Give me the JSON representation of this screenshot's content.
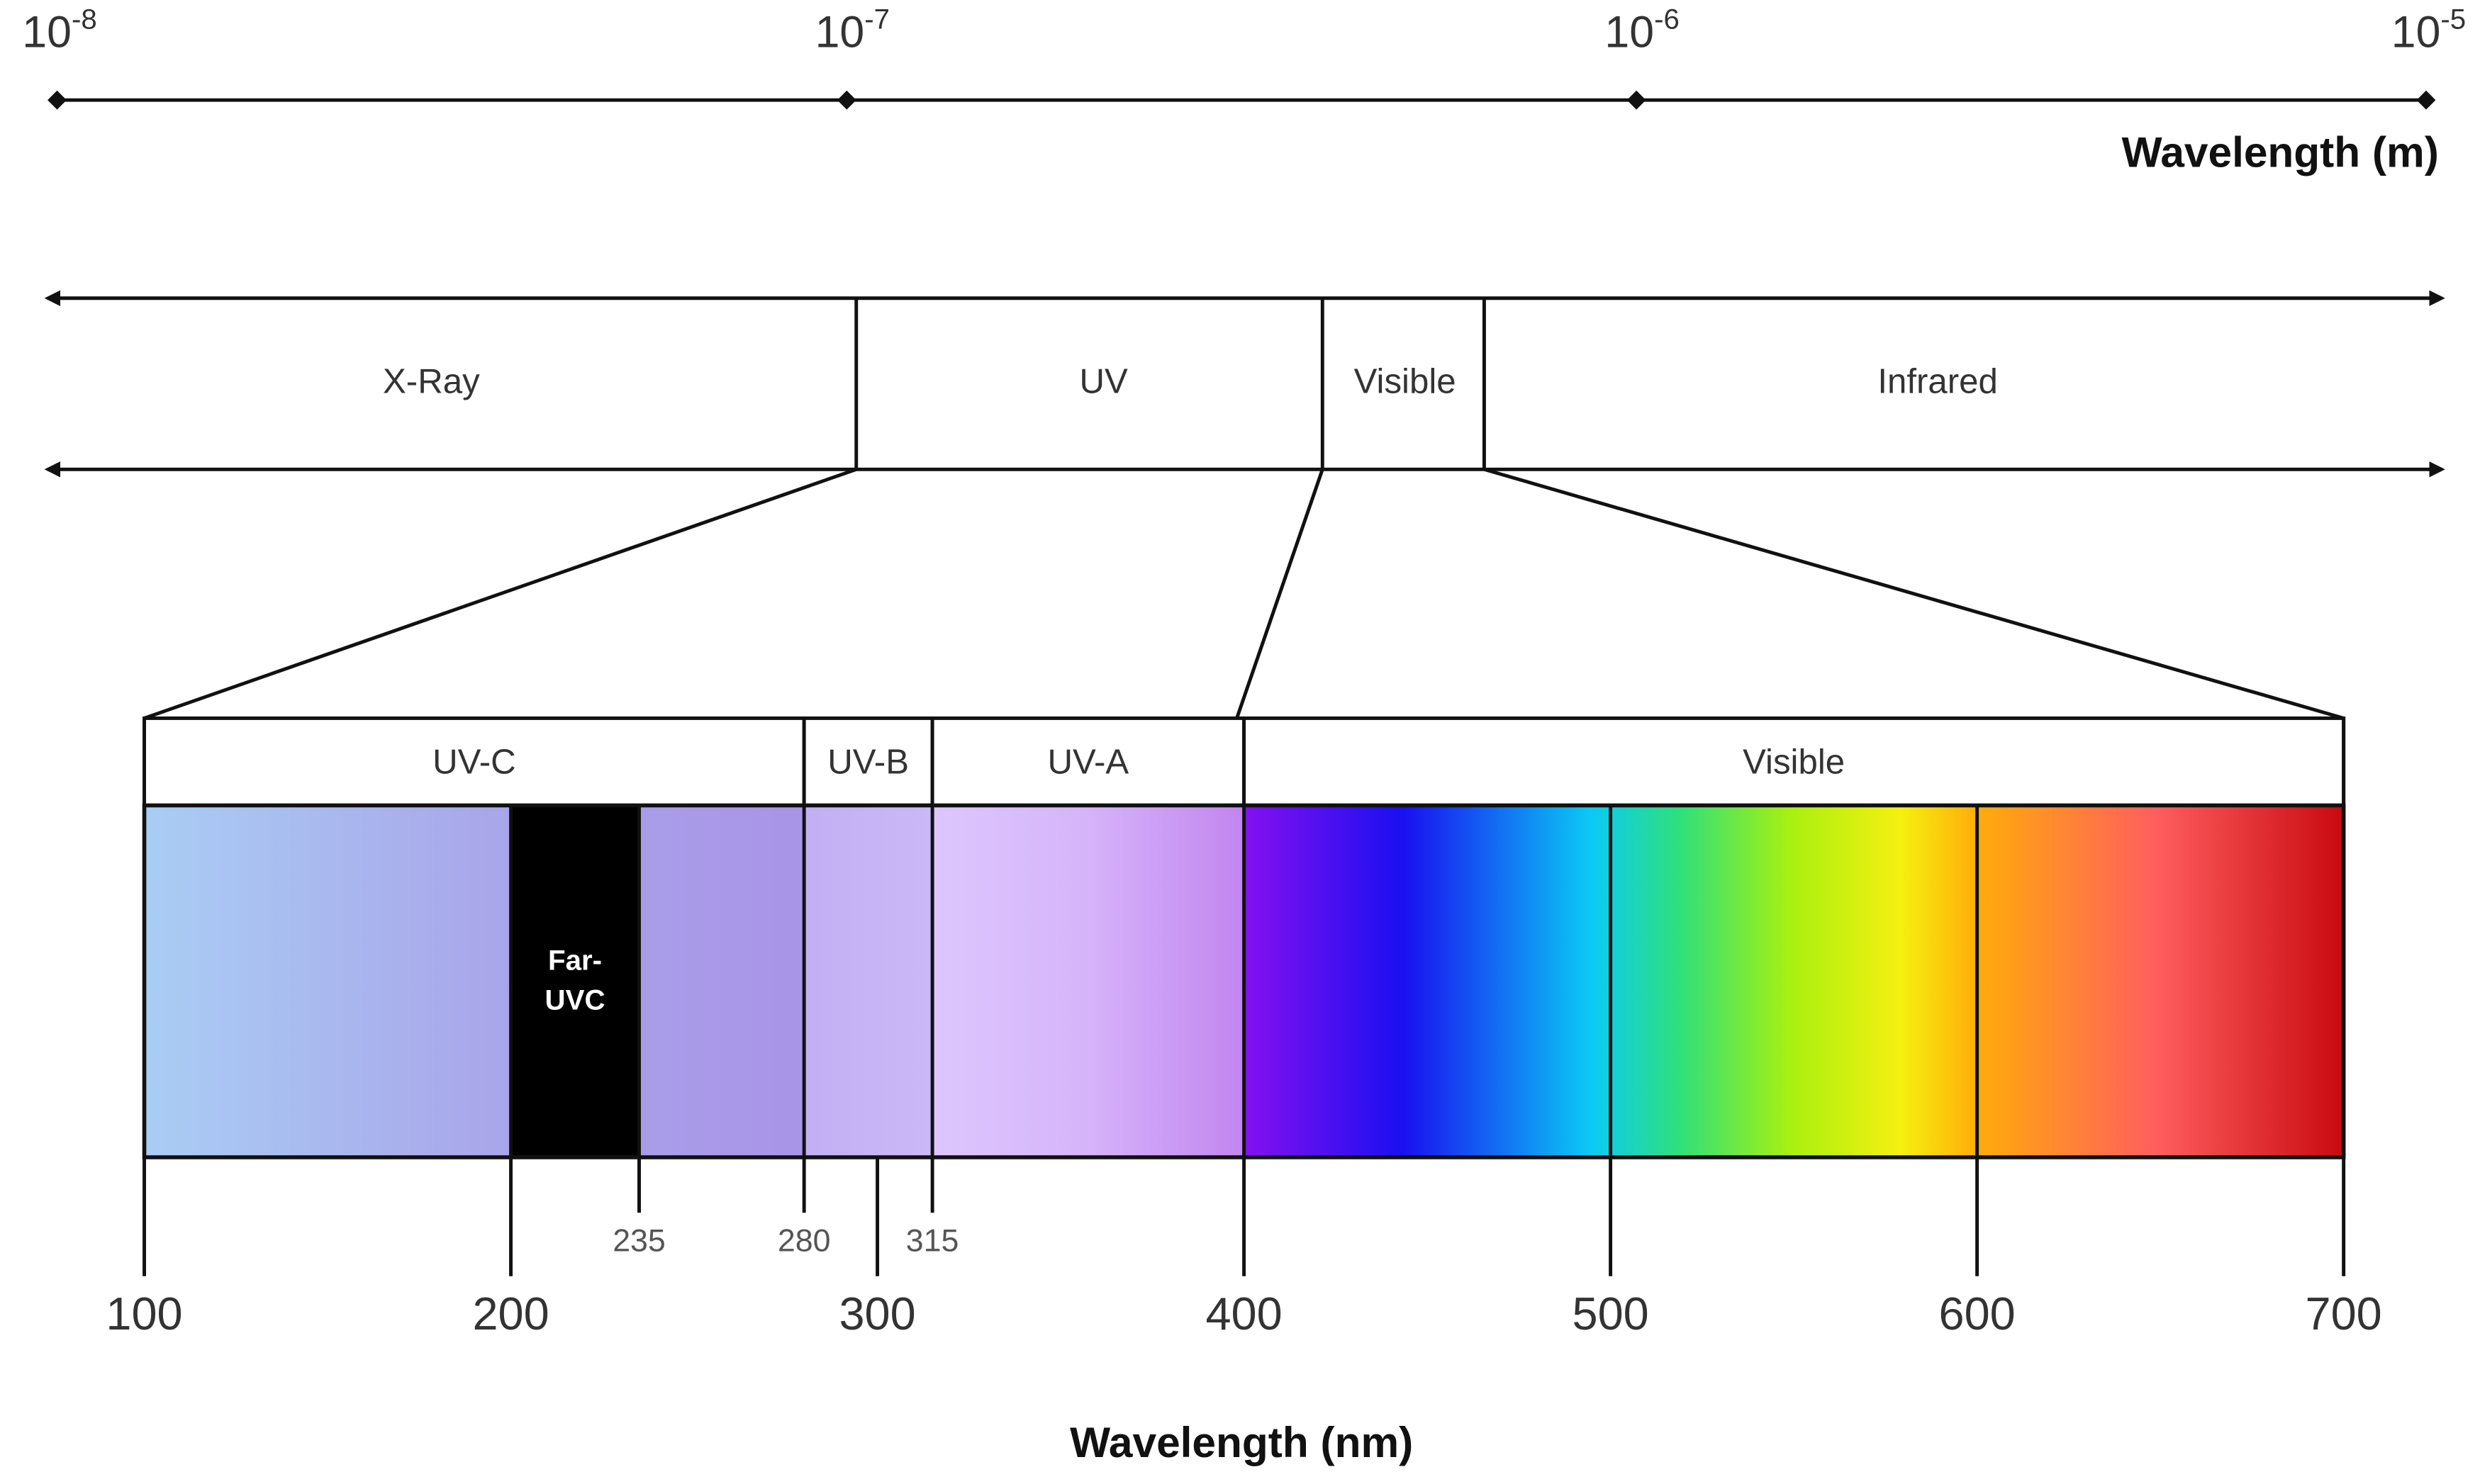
{
  "top_axis": {
    "ticks": [
      {
        "base": "10",
        "exponent": "-8"
      },
      {
        "base": "10",
        "exponent": "-7"
      },
      {
        "base": "10",
        "exponent": "-6"
      },
      {
        "base": "10",
        "exponent": "-5"
      }
    ],
    "label": "Wavelength (m)"
  },
  "bands": [
    "X-Ray",
    "UV",
    "Visible",
    "Infrared"
  ],
  "detail": {
    "sections": [
      {
        "label": "UV-C",
        "from": 100,
        "to": 280
      },
      {
        "label": "UV-B",
        "from": 280,
        "to": 315
      },
      {
        "label": "UV-A",
        "from": 315,
        "to": 400
      },
      {
        "label": "Visible",
        "from": 400,
        "to": 700
      }
    ],
    "highlight": {
      "lines": [
        "Far-",
        "UVC"
      ],
      "from": 200,
      "to": 235
    },
    "major_ticks": [
      100,
      200,
      300,
      400,
      500,
      600,
      700
    ],
    "minor_ticks": [
      235,
      280,
      315
    ],
    "label": "Wavelength (nm)"
  }
}
